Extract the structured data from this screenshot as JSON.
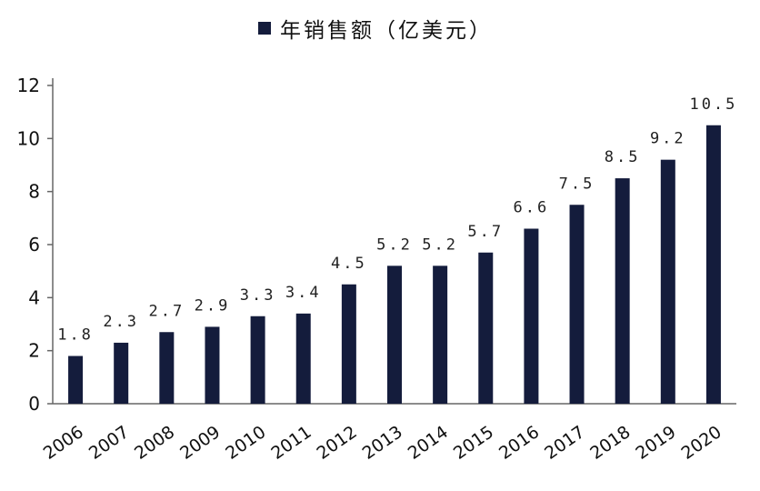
{
  "legend": {
    "label": "年销售额（亿美元）"
  },
  "colors": {
    "bar": "#141c3c",
    "axis": "#666666"
  },
  "chart_data": {
    "type": "bar",
    "categories": [
      "2006",
      "2007",
      "2008",
      "2009",
      "2010",
      "2011",
      "2012",
      "2013",
      "2014",
      "2015",
      "2016",
      "2017",
      "2018",
      "2019",
      "2020"
    ],
    "series": [
      {
        "name": "年销售额（亿美元）",
        "values": [
          1.8,
          2.3,
          2.7,
          2.9,
          3.3,
          3.4,
          4.5,
          5.2,
          5.2,
          5.7,
          6.6,
          7.5,
          8.5,
          9.2,
          10.5
        ],
        "labels": [
          "1.8",
          "2.3",
          "2.7",
          "2.9",
          "3.3",
          "3.4",
          "4.5",
          "5.2",
          "5.2",
          "5.7",
          "6.6",
          "7.5",
          "8.5",
          "9.2",
          "10.5"
        ]
      }
    ],
    "yticks": [
      0,
      2,
      4,
      6,
      8,
      10,
      12
    ],
    "ylim": [
      0,
      12
    ],
    "title": "",
    "xlabel": "",
    "ylabel": "",
    "grid": false,
    "legend_position": "top-center"
  }
}
